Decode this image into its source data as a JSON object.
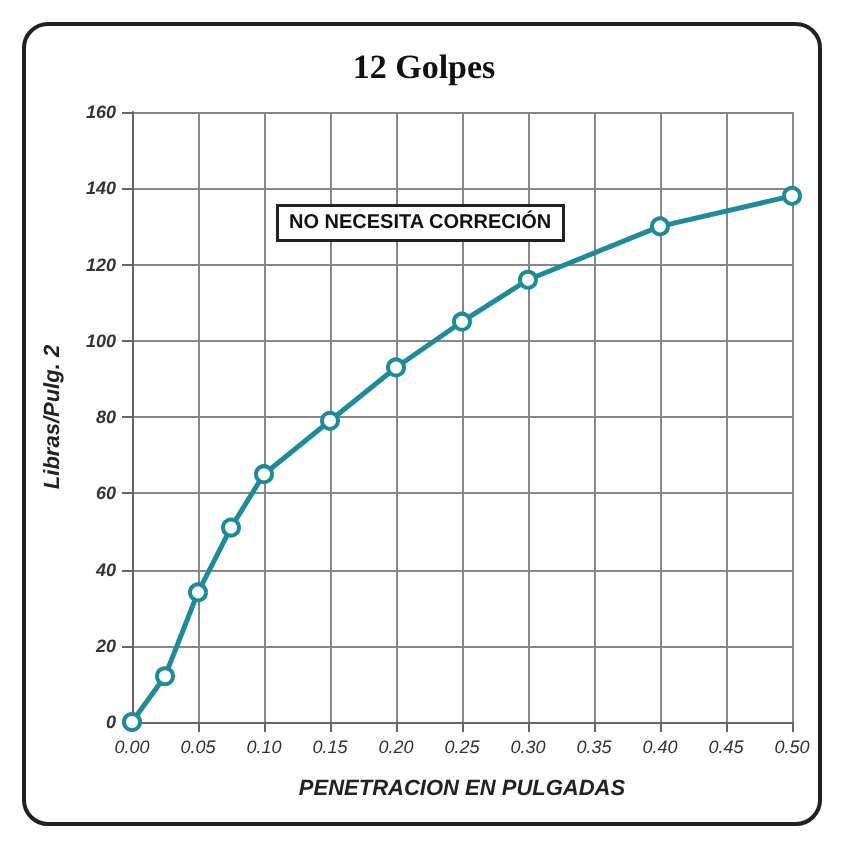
{
  "chart_data": {
    "type": "line",
    "title": "12 Golpes",
    "xlabel": "PENETRACION EN PULGADAS",
    "ylabel": "Libras/Pulg. 2",
    "annotations": [
      "NO NECESITA CORRECIÓN"
    ],
    "x": [
      0,
      0.025,
      0.05,
      0.075,
      0.1,
      0.15,
      0.2,
      0.25,
      0.3,
      0.4,
      0.5
    ],
    "series": [
      {
        "color": "#1f8a9a",
        "values": [
          0,
          12,
          34,
          51,
          65,
          79,
          93,
          105,
          116,
          130,
          138
        ]
      }
    ],
    "xlim": [
      0,
      0.5
    ],
    "xticks": [
      {
        "value": 0,
        "label": "0.00"
      },
      {
        "value": 0.05,
        "label": "0.05"
      },
      {
        "value": 0.1,
        "label": "0.10"
      },
      {
        "value": 0.15,
        "label": "0.15"
      },
      {
        "value": 0.2,
        "label": "0.20"
      },
      {
        "value": 0.25,
        "label": "0.25"
      },
      {
        "value": 0.3,
        "label": "0.30"
      },
      {
        "value": 0.35,
        "label": "0.35"
      },
      {
        "value": 0.4,
        "label": "0.40"
      },
      {
        "value": 0.45,
        "label": "0.45"
      },
      {
        "value": 0.5,
        "label": "0.50"
      }
    ],
    "ylim": [
      0,
      160
    ],
    "yticks": [
      0,
      20,
      40,
      60,
      80,
      100,
      120,
      140,
      160
    ],
    "grid": true,
    "marker": "circle",
    "line_style": "solid"
  }
}
